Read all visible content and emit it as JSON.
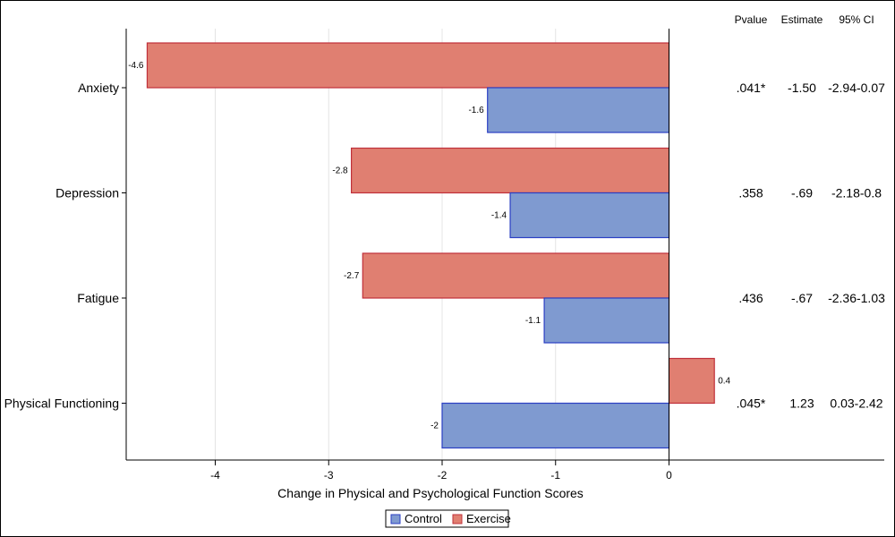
{
  "chart_data": {
    "type": "bar",
    "orientation": "horizontal",
    "categories": [
      "Anxiety",
      "Depression",
      "Fatigue",
      "Physical Functioning"
    ],
    "series": [
      {
        "name": "Exercise",
        "values": [
          -4.6,
          -2.8,
          -2.7,
          0.4
        ],
        "color": "#e07f71",
        "stroke": "#c0303a"
      },
      {
        "name": "Control",
        "values": [
          -1.6,
          -1.4,
          -1.1,
          -2
        ],
        "color": "#7f9ad0",
        "stroke": "#2b3fc4"
      }
    ],
    "xlabel": "Change in Physical and Psychological Function Scores",
    "ylabel": "",
    "xlim": [
      -4.75,
      0.45
    ],
    "xticks": [
      -4,
      -3,
      -2,
      -1,
      0
    ],
    "grid": true,
    "legend_position": "bottom-center",
    "stats_table": {
      "headers": [
        "Pvalue",
        "Estimate",
        "95% CI"
      ],
      "rows": [
        [
          ".041*",
          "-1.50",
          "-2.94-0.07"
        ],
        [
          ".358",
          "-.69",
          "-2.18-0.8"
        ],
        [
          ".436",
          "-.67",
          "-2.36-1.03"
        ],
        [
          ".045*",
          "1.23",
          "0.03-2.42"
        ]
      ]
    },
    "legend_order": [
      "Control",
      "Exercise"
    ]
  }
}
